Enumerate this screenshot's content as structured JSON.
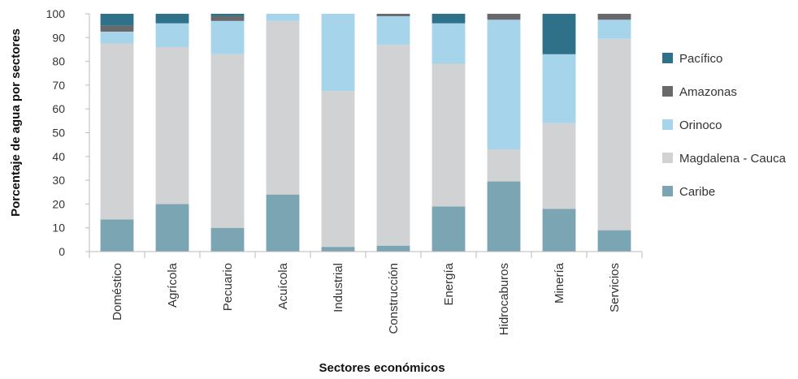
{
  "chart_data": {
    "type": "bar",
    "stacked": true,
    "xlabel": "Sectores económicos",
    "ylabel": "Porcentaje de agua por sectores",
    "ylim": [
      0,
      100
    ],
    "yticks": [
      0,
      10,
      20,
      30,
      40,
      50,
      60,
      70,
      80,
      90,
      100
    ],
    "categories": [
      "Doméstico",
      "Agrícola",
      "Pecuario",
      "Acuícola",
      "Industrial",
      "Construcción",
      "Energía",
      "Hidrocaburos",
      "Minería",
      "Servicios"
    ],
    "series": [
      {
        "name": "Caribe",
        "color": "#7ba5b2",
        "values": [
          13.5,
          20,
          10,
          24,
          2,
          2.5,
          19,
          29.5,
          18,
          9
        ]
      },
      {
        "name": "Magdalena - Cauca",
        "color": "#d1d2d4",
        "values": [
          74,
          66,
          73,
          73,
          65.5,
          84.5,
          60,
          13.5,
          36,
          80.5
        ]
      },
      {
        "name": "Orinoco",
        "color": "#a5d4eb",
        "values": [
          5,
          10,
          14,
          3,
          32.5,
          12,
          17,
          54.5,
          29,
          8
        ]
      },
      {
        "name": "Amazonas",
        "color": "#68696b",
        "values": [
          2.5,
          0,
          2,
          0,
          0,
          1,
          0,
          2.5,
          0,
          2.5
        ]
      },
      {
        "name": "Pacífico",
        "color": "#2f7189",
        "values": [
          5,
          4,
          1,
          0,
          0,
          0,
          4,
          0,
          17,
          0
        ]
      }
    ],
    "legend": {
      "position": "right",
      "order": [
        "Pacífico",
        "Amazonas",
        "Orinoco",
        "Magdalena - Cauca",
        "Caribe"
      ]
    },
    "grid": false
  }
}
